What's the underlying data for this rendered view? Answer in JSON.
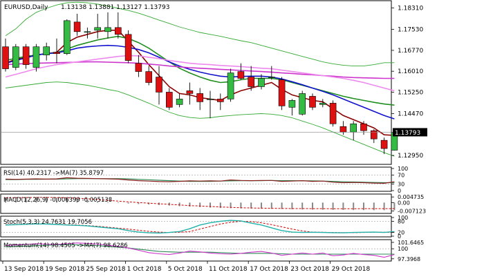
{
  "header": {
    "symbol": "EURUSD,Daily",
    "ohlc": "1.13138 1.13881 1.13127 1.13793"
  },
  "price_axis": {
    "ticks": [
      "1.18310",
      "1.17530",
      "1.16770",
      "1.16010",
      "1.15250",
      "1.14470",
      "1.13793",
      "1.12950"
    ],
    "last_price": "1.13793"
  },
  "date_axis": {
    "labels": [
      "13 Sep 2018",
      "19 Sep 2018",
      "25 Sep 2018",
      "1 Oct 2018",
      "5 Oct 2018",
      "11 Oct 2018",
      "17 Oct 2018",
      "23 Oct 2018",
      "29 Oct 2018"
    ]
  },
  "indicators": {
    "rsi": {
      "label": "RSI(14) 40.2317 ->MA(7) 35.8797",
      "ticks": [
        "100",
        "70",
        "30",
        "0"
      ]
    },
    "macd": {
      "label": "MACD(12,26,9) -0.006399 -0.005138",
      "ticks": [
        "0.004735",
        "0.00",
        "-0.007123"
      ]
    },
    "stoch": {
      "label": "Stoch(5,3,3) 24.7631 19.7056",
      "ticks": [
        "100",
        "80",
        "20",
        "0"
      ]
    },
    "momentum": {
      "label": "Momentum(14) 98.4505 ->MA(7) 98.6286",
      "ticks": [
        "101.6465",
        "100",
        "97.3968"
      ]
    }
  },
  "colors": {
    "bull": "#33bb44",
    "bear": "#dd1111",
    "wick": "#000000",
    "ma_fast": "#8b0000",
    "ma_mid": "#1f8f1f",
    "ma_blue": "#1111cc",
    "ma_magenta": "#cc33cc",
    "ma_pink": "#ee88ee",
    "bollinger": "#33aa33",
    "rsi": "#8b1a1a",
    "rsi_ma": "#2e8b57",
    "macd": "#888888",
    "macd_signal": "#cc0000",
    "stoch": "#20b2aa",
    "stoch_signal": "#cc0000",
    "momentum": "#cc33cc",
    "momentum_ma": "#2e8b57"
  },
  "chart_data": {
    "type": "candlestick",
    "symbol": "EURUSD",
    "timeframe": "Daily",
    "ylim": [
      1.1265,
      1.1855
    ],
    "candles": [
      {
        "o": 1.169,
        "h": 1.172,
        "l": 1.16,
        "c": 1.161
      },
      {
        "o": 1.1615,
        "h": 1.17,
        "l": 1.1605,
        "c": 1.169
      },
      {
        "o": 1.169,
        "h": 1.17,
        "l": 1.161,
        "c": 1.1625
      },
      {
        "o": 1.1615,
        "h": 1.17,
        "l": 1.16,
        "c": 1.169
      },
      {
        "o": 1.166,
        "h": 1.1705,
        "l": 1.164,
        "c": 1.169
      },
      {
        "o": 1.167,
        "h": 1.172,
        "l": 1.163,
        "c": 1.1665
      },
      {
        "o": 1.1665,
        "h": 1.179,
        "l": 1.166,
        "c": 1.1785
      },
      {
        "o": 1.178,
        "h": 1.181,
        "l": 1.173,
        "c": 1.1745
      },
      {
        "o": 1.1745,
        "h": 1.176,
        "l": 1.172,
        "c": 1.1745
      },
      {
        "o": 1.175,
        "h": 1.181,
        "l": 1.172,
        "c": 1.176
      },
      {
        "o": 1.1745,
        "h": 1.1815,
        "l": 1.172,
        "c": 1.176
      },
      {
        "o": 1.176,
        "h": 1.1815,
        "l": 1.172,
        "c": 1.1735
      },
      {
        "o": 1.1735,
        "h": 1.175,
        "l": 1.163,
        "c": 1.164
      },
      {
        "o": 1.163,
        "h": 1.166,
        "l": 1.158,
        "c": 1.16
      },
      {
        "o": 1.16,
        "h": 1.162,
        "l": 1.155,
        "c": 1.156
      },
      {
        "o": 1.158,
        "h": 1.162,
        "l": 1.148,
        "c": 1.1525
      },
      {
        "o": 1.1525,
        "h": 1.154,
        "l": 1.146,
        "c": 1.147
      },
      {
        "o": 1.148,
        "h": 1.152,
        "l": 1.147,
        "c": 1.15
      },
      {
        "o": 1.153,
        "h": 1.156,
        "l": 1.148,
        "c": 1.152
      },
      {
        "o": 1.152,
        "h": 1.154,
        "l": 1.146,
        "c": 1.149
      },
      {
        "o": 1.15,
        "h": 1.153,
        "l": 1.143,
        "c": 1.15
      },
      {
        "o": 1.15,
        "h": 1.152,
        "l": 1.146,
        "c": 1.149
      },
      {
        "o": 1.15,
        "h": 1.161,
        "l": 1.149,
        "c": 1.1595
      },
      {
        "o": 1.16,
        "h": 1.163,
        "l": 1.157,
        "c": 1.1575
      },
      {
        "o": 1.158,
        "h": 1.162,
        "l": 1.153,
        "c": 1.1545
      },
      {
        "o": 1.1545,
        "h": 1.159,
        "l": 1.1535,
        "c": 1.1575
      },
      {
        "o": 1.158,
        "h": 1.162,
        "l": 1.157,
        "c": 1.158
      },
      {
        "o": 1.157,
        "h": 1.158,
        "l": 1.146,
        "c": 1.1475
      },
      {
        "o": 1.147,
        "h": 1.15,
        "l": 1.144,
        "c": 1.1495
      },
      {
        "o": 1.1445,
        "h": 1.153,
        "l": 1.144,
        "c": 1.152
      },
      {
        "o": 1.151,
        "h": 1.152,
        "l": 1.146,
        "c": 1.147
      },
      {
        "o": 1.148,
        "h": 1.15,
        "l": 1.147,
        "c": 1.1485
      },
      {
        "o": 1.1485,
        "h": 1.1495,
        "l": 1.14,
        "c": 1.141
      },
      {
        "o": 1.14,
        "h": 1.142,
        "l": 1.137,
        "c": 1.138
      },
      {
        "o": 1.138,
        "h": 1.142,
        "l": 1.135,
        "c": 1.141
      },
      {
        "o": 1.141,
        "h": 1.142,
        "l": 1.137,
        "c": 1.1385
      },
      {
        "o": 1.1385,
        "h": 1.139,
        "l": 1.134,
        "c": 1.1355
      },
      {
        "o": 1.135,
        "h": 1.136,
        "l": 1.13,
        "c": 1.132
      },
      {
        "o": 1.1314,
        "h": 1.1388,
        "l": 1.1313,
        "c": 1.1379
      }
    ],
    "overlays": [
      {
        "color_key": "ma_fast",
        "values": [
          1.163,
          1.1645,
          1.165,
          1.166,
          1.1665,
          1.167,
          1.1705,
          1.1725,
          1.1735,
          1.1745,
          1.175,
          1.175,
          1.171,
          1.167,
          1.1625,
          1.1585,
          1.1545,
          1.152,
          1.1515,
          1.1505,
          1.15,
          1.1495,
          1.1515,
          1.153,
          1.154,
          1.155,
          1.156,
          1.1535,
          1.1515,
          1.1505,
          1.1495,
          1.149,
          1.1465,
          1.144,
          1.1425,
          1.141,
          1.1395,
          1.137,
          1.1368
        ]
      },
      {
        "color_key": "ma_mid",
        "values": [
          1.164,
          1.1648,
          1.1655,
          1.166,
          1.1665,
          1.1668,
          1.1682,
          1.1695,
          1.1705,
          1.1715,
          1.1722,
          1.1728,
          1.172,
          1.1705,
          1.1685,
          1.166,
          1.1635,
          1.1612,
          1.1595,
          1.158,
          1.1568,
          1.156,
          1.1563,
          1.157,
          1.1575,
          1.1575,
          1.1575,
          1.157,
          1.156,
          1.155,
          1.154,
          1.153,
          1.152,
          1.151,
          1.1502,
          1.1495,
          1.1488,
          1.1482,
          1.1478
        ]
      },
      {
        "color_key": "ma_blue",
        "values": [
          1.163,
          1.164,
          1.165,
          1.166,
          1.1665,
          1.1668,
          1.1675,
          1.1685,
          1.169,
          1.1693,
          1.1695,
          1.1693,
          1.1688,
          1.168,
          1.1668,
          1.1652,
          1.1635,
          1.162,
          1.1608,
          1.1598,
          1.159,
          1.1583,
          1.158,
          1.1582,
          1.1583,
          1.1583,
          1.158,
          1.1573,
          1.1563,
          1.1552,
          1.154,
          1.1528,
          1.1515,
          1.15,
          1.1485,
          1.147,
          1.1455,
          1.144,
          1.1428
        ]
      },
      {
        "color_key": "ma_magenta",
        "values": [
          1.1625,
          1.1627,
          1.1629,
          1.163,
          1.1631,
          1.1632,
          1.1633,
          1.1634,
          1.1635,
          1.1635,
          1.1634,
          1.1633,
          1.1632,
          1.163,
          1.1627,
          1.1624,
          1.162,
          1.1617,
          1.1614,
          1.1612,
          1.161,
          1.1608,
          1.1606,
          1.1604,
          1.1602,
          1.16,
          1.1598,
          1.1595,
          1.1593,
          1.159,
          1.1588,
          1.1585,
          1.1583,
          1.158,
          1.1578,
          1.1577,
          1.1576,
          1.1575,
          1.1575
        ]
      },
      {
        "color_key": "ma_pink",
        "values": [
          1.158,
          1.159,
          1.16,
          1.161,
          1.1618,
          1.1625,
          1.163,
          1.1635,
          1.164,
          1.1645,
          1.165,
          1.1655,
          1.1658,
          1.1657,
          1.1652,
          1.1647,
          1.164,
          1.1635,
          1.163,
          1.1627,
          1.1625,
          1.1622,
          1.162,
          1.1618,
          1.1615,
          1.1612,
          1.161,
          1.1605,
          1.16,
          1.1595,
          1.159,
          1.1585,
          1.158,
          1.1575,
          1.1568,
          1.156,
          1.155,
          1.154,
          1.153
        ]
      },
      {
        "color_key": "bollinger",
        "values": [
          1.173,
          1.1755,
          1.179,
          1.1815,
          1.183,
          1.1842,
          1.185,
          1.1852,
          1.185,
          1.1845,
          1.1838,
          1.183,
          1.1822,
          1.1812,
          1.18,
          1.1787,
          1.1775,
          1.1762,
          1.1752,
          1.1742,
          1.1735,
          1.1728,
          1.172,
          1.1712,
          1.1705,
          1.1695,
          1.1685,
          1.1675,
          1.1665,
          1.1655,
          1.1645,
          1.1635,
          1.1628,
          1.1623,
          1.162,
          1.162,
          1.1625,
          1.1632,
          1.1632
        ]
      },
      {
        "color_key": "bollinger",
        "values": [
          1.154,
          1.1545,
          1.155,
          1.1555,
          1.156,
          1.1562,
          1.156,
          1.1555,
          1.155,
          1.1543,
          1.1535,
          1.1528,
          1.1515,
          1.15,
          1.1485,
          1.1468,
          1.1452,
          1.144,
          1.1433,
          1.143,
          1.1432,
          1.1437,
          1.144,
          1.1443,
          1.1445,
          1.1447,
          1.1445,
          1.144,
          1.1432,
          1.142,
          1.1408,
          1.1395,
          1.138,
          1.1365,
          1.135,
          1.1335,
          1.132,
          1.1305,
          1.1292
        ]
      }
    ],
    "rsi": {
      "range": [
        0,
        100
      ],
      "series": [
        52,
        51,
        52,
        53,
        52,
        53,
        58,
        56,
        55,
        54,
        53,
        52,
        48,
        45,
        43,
        41,
        40,
        42,
        44,
        43,
        44,
        43,
        48,
        46,
        45,
        46,
        46,
        42,
        43,
        45,
        42,
        43,
        38,
        36,
        37,
        36,
        34,
        33,
        40
      ]
    },
    "rsi_ma": {
      "series": [
        50,
        50,
        51,
        51,
        52,
        52,
        53,
        54,
        54,
        54,
        54,
        54,
        53,
        51,
        49,
        47,
        45,
        43,
        42,
        42,
        42,
        43,
        44,
        45,
        45,
        45,
        46,
        45,
        45,
        44,
        44,
        43,
        42,
        40,
        39,
        38,
        37,
        36,
        36
      ]
    },
    "macd": {
      "range": [
        -0.0085,
        0.006
      ],
      "bars": [
        0.004,
        0.0042,
        0.0045,
        0.0047,
        0.0046,
        0.0042,
        0.0038,
        0.003,
        0.002,
        0.001,
        0.0002,
        -0.0004,
        -0.0008,
        -0.0012,
        -0.0016,
        -0.002,
        -0.0025,
        -0.003,
        -0.0034,
        -0.0038,
        -0.0042,
        -0.0045,
        -0.0047,
        -0.0049,
        -0.005,
        -0.0051,
        -0.0052,
        -0.0054,
        -0.0056,
        -0.0058,
        -0.0059,
        -0.006,
        -0.0061,
        -0.0062,
        -0.0063,
        -0.0063,
        -0.0064,
        -0.0064,
        -0.0064
      ],
      "signal": [
        0.004,
        0.0041,
        0.0042,
        0.0043,
        0.0043,
        0.0042,
        0.004,
        0.0037,
        0.0032,
        0.0026,
        0.0019,
        0.0012,
        0.0006,
        0.0,
        -0.0005,
        -0.001,
        -0.0015,
        -0.002,
        -0.0025,
        -0.0029,
        -0.0033,
        -0.0037,
        -0.004,
        -0.0043,
        -0.0045,
        -0.0047,
        -0.0048,
        -0.0049,
        -0.005,
        -0.005,
        -0.0051,
        -0.0051,
        -0.0052,
        -0.0052,
        -0.0052,
        -0.0051,
        -0.0051,
        -0.0051,
        -0.0051
      ]
    },
    "stoch": {
      "range": [
        0,
        100
      ],
      "main": [
        60,
        62,
        64,
        66,
        65,
        63,
        60,
        58,
        55,
        50,
        45,
        40,
        30,
        22,
        18,
        17,
        20,
        25,
        40,
        60,
        72,
        80,
        85,
        82,
        70,
        60,
        45,
        30,
        22,
        20,
        21,
        20,
        19,
        18,
        20,
        21,
        22,
        20,
        25
      ],
      "signal": [
        62,
        63,
        64,
        65,
        65,
        64,
        62,
        60,
        57,
        53,
        48,
        43,
        38,
        32,
        26,
        22,
        20,
        21,
        25,
        38,
        52,
        65,
        75,
        80,
        78,
        72,
        62,
        50,
        38,
        28,
        22,
        21,
        20,
        19,
        19,
        20,
        21,
        21,
        20
      ]
    },
    "momentum": {
      "range": [
        97.0,
        102.0
      ],
      "series": [
        100.8,
        101.0,
        101.1,
        101.3,
        101.2,
        101.1,
        101.3,
        101.5,
        101.4,
        101.2,
        100.9,
        100.6,
        100.2,
        99.6,
        99.0,
        98.7,
        98.5,
        98.9,
        99.4,
        99.2,
        98.9,
        98.7,
        98.6,
        98.8,
        99.1,
        99.3,
        98.9,
        98.3,
        98.6,
        98.9,
        98.6,
        98.9,
        98.2,
        98.4,
        98.8,
        98.5,
        98.3,
        97.8,
        98.5
      ],
      "ma": [
        100.5,
        100.6,
        100.7,
        100.8,
        100.9,
        101.0,
        101.0,
        101.0,
        100.9,
        100.8,
        100.6,
        100.4,
        100.2,
        99.9,
        99.6,
        99.3,
        99.2,
        99.1,
        99.1,
        99.1,
        99.1,
        99.0,
        98.9,
        98.8,
        98.8,
        98.8,
        98.8,
        98.7,
        98.6,
        98.6,
        98.6,
        98.6,
        98.6,
        98.6,
        98.6,
        98.6,
        98.6,
        98.6,
        98.6
      ]
    }
  }
}
